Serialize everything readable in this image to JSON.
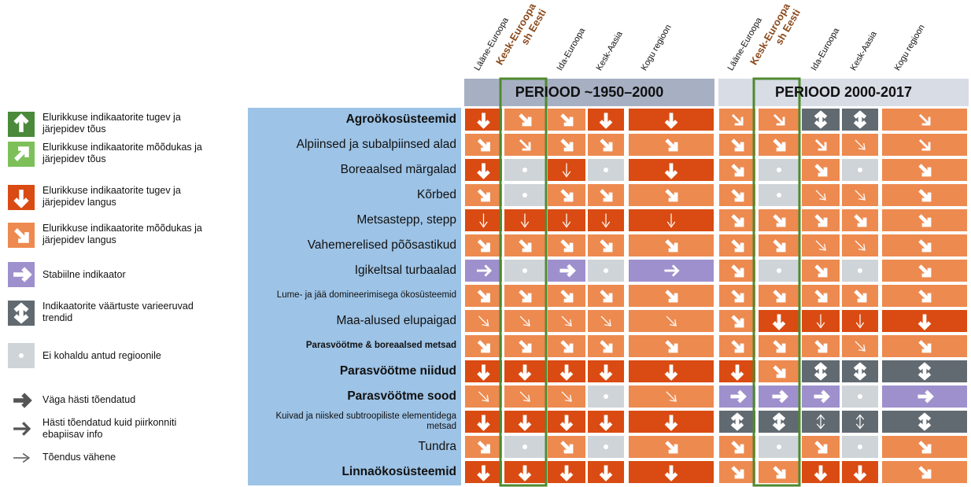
{
  "legend": {
    "trends": [
      {
        "label": "Elurikkuse indikaatorite tugev ja järjepidev tõus",
        "color": "#4a8a3a"
      },
      {
        "label": "Elurikkuse indikaatorite mõõdukas ja järjepidev tõus",
        "color": "#7dc05a"
      },
      {
        "label": "Elurikkuse indikaatorite tugev ja järjepidev langus",
        "color": "#d94b12"
      },
      {
        "label": "Elurikkuse indikaatorite mõõdukas ja järjepidev langus",
        "color": "#ed8a50"
      },
      {
        "label": "Stabiilne indikaator",
        "color": "#9e90cc"
      },
      {
        "label": "Indikaatorite väärtuste varieeruvad trendid",
        "color": "#626a71"
      },
      {
        "label": "Ei kohaldu antud regioonile",
        "color": "#cfd4d8"
      }
    ],
    "confidence": [
      "Väga hästi tõendatud",
      "Hästi tõendatud kuid piirkonniti ebapiisav info",
      "Tõendus vähene"
    ]
  },
  "columns": [
    "Lääne-Euroopa",
    "Kesk-Euroopa sh Eesti",
    "Ida-Euroopa",
    "Kesk-Aasia",
    "Kogu regioon"
  ],
  "periods": [
    {
      "title": "PERIOOD ~1950–2000",
      "color": "#a7b0c3"
    },
    {
      "title": "PERIOOD 2000-2017",
      "color": "#d7dce5"
    }
  ],
  "rows": [
    {
      "label": "Agroökosüsteemid",
      "bold": true,
      "cells": [
        [
          2,
          0
        ],
        [
          3,
          0
        ],
        [
          3,
          0
        ],
        [
          2,
          0
        ],
        [
          2,
          0
        ],
        [
          3,
          1
        ],
        [
          3,
          1
        ],
        [
          5,
          0
        ],
        [
          5,
          0
        ],
        [
          3,
          1
        ]
      ]
    },
    {
      "label": "Alpiinsed ja subalpiinsed alad",
      "cells": [
        [
          3,
          0
        ],
        [
          3,
          1
        ],
        [
          3,
          0
        ],
        [
          3,
          0
        ],
        [
          3,
          0
        ],
        [
          3,
          0
        ],
        [
          3,
          0
        ],
        [
          3,
          1
        ],
        [
          3,
          2
        ],
        [
          3,
          1
        ]
      ]
    },
    {
      "label": "Boreaalsed märgalad",
      "cells": [
        [
          2,
          0
        ],
        [
          6
        ],
        [
          2,
          2
        ],
        [
          6
        ],
        [
          2,
          0
        ],
        [
          3,
          0
        ],
        [
          6
        ],
        [
          3,
          0
        ],
        [
          6
        ],
        [
          3,
          0
        ]
      ]
    },
    {
      "label": "Kõrbed",
      "cells": [
        [
          3,
          0
        ],
        [
          6
        ],
        [
          3,
          0
        ],
        [
          3,
          0
        ],
        [
          3,
          0
        ],
        [
          3,
          0
        ],
        [
          6
        ],
        [
          3,
          2
        ],
        [
          3,
          2
        ],
        [
          3,
          0
        ]
      ]
    },
    {
      "label": "Metsastepp, stepp",
      "cells": [
        [
          2,
          2
        ],
        [
          2,
          2
        ],
        [
          2,
          2
        ],
        [
          2,
          2
        ],
        [
          2,
          2
        ],
        [
          3,
          0
        ],
        [
          3,
          0
        ],
        [
          3,
          0
        ],
        [
          3,
          0
        ],
        [
          3,
          0
        ]
      ]
    },
    {
      "label": "Vahemerelised põõsastikud",
      "cells": [
        [
          3,
          0
        ],
        [
          3,
          0
        ],
        [
          3,
          0
        ],
        [
          3,
          0
        ],
        [
          3,
          0
        ],
        [
          3,
          0
        ],
        [
          3,
          0
        ],
        [
          3,
          2
        ],
        [
          3,
          2
        ],
        [
          3,
          0
        ]
      ]
    },
    {
      "label": "Igikeltsal turbaalad",
      "cells": [
        [
          4,
          1
        ],
        [
          6
        ],
        [
          4,
          0
        ],
        [
          6
        ],
        [
          4,
          1
        ],
        [
          3,
          0
        ],
        [
          6
        ],
        [
          3,
          0
        ],
        [
          6
        ],
        [
          3,
          0
        ]
      ]
    },
    {
      "label": "Lume- ja jää domineerimisega ökosüsteemid",
      "small": true,
      "cells": [
        [
          3,
          0
        ],
        [
          3,
          0
        ],
        [
          3,
          0
        ],
        [
          3,
          0
        ],
        [
          3,
          0
        ],
        [
          3,
          0
        ],
        [
          3,
          0
        ],
        [
          3,
          0
        ],
        [
          3,
          0
        ],
        [
          3,
          0
        ]
      ]
    },
    {
      "label": "Maa-alused elupaigad",
      "cells": [
        [
          3,
          2
        ],
        [
          3,
          2
        ],
        [
          3,
          2
        ],
        [
          3,
          2
        ],
        [
          3,
          2
        ],
        [
          3,
          0
        ],
        [
          2,
          0
        ],
        [
          2,
          2
        ],
        [
          2,
          2
        ],
        [
          2,
          0
        ]
      ]
    },
    {
      "label": "Parasvöötme & boreaalsed metsad",
      "bold": true,
      "small": true,
      "cells": [
        [
          3,
          0
        ],
        [
          3,
          0
        ],
        [
          3,
          0
        ],
        [
          3,
          0
        ],
        [
          3,
          0
        ],
        [
          3,
          0
        ],
        [
          3,
          0
        ],
        [
          3,
          0
        ],
        [
          3,
          2
        ],
        [
          3,
          0
        ]
      ]
    },
    {
      "label": "Parasvöötme niidud",
      "bold": true,
      "cells": [
        [
          2,
          0
        ],
        [
          2,
          0
        ],
        [
          2,
          0
        ],
        [
          2,
          0
        ],
        [
          2,
          0
        ],
        [
          2,
          0
        ],
        [
          3,
          0
        ],
        [
          5,
          0
        ],
        [
          5,
          0
        ],
        [
          5,
          0
        ]
      ]
    },
    {
      "label": "Parasvöötme sood",
      "bold": true,
      "cells": [
        [
          3,
          2
        ],
        [
          3,
          2
        ],
        [
          3,
          2
        ],
        [
          6
        ],
        [
          3,
          2
        ],
        [
          4,
          0
        ],
        [
          4,
          0
        ],
        [
          4,
          0
        ],
        [
          6
        ],
        [
          4,
          0
        ]
      ]
    },
    {
      "label": "Kuivad ja niisked subtroopiliste elementidega metsad",
      "small": true,
      "cells": [
        [
          2,
          0
        ],
        [
          2,
          0
        ],
        [
          2,
          0
        ],
        [
          2,
          0
        ],
        [
          2,
          0
        ],
        [
          5,
          0
        ],
        [
          5,
          0
        ],
        [
          5,
          2
        ],
        [
          5,
          2
        ],
        [
          5,
          0
        ]
      ]
    },
    {
      "label": "Tundra",
      "cells": [
        [
          3,
          0
        ],
        [
          6
        ],
        [
          3,
          0
        ],
        [
          6
        ],
        [
          3,
          0
        ],
        [
          3,
          0
        ],
        [
          6
        ],
        [
          3,
          0
        ],
        [
          6
        ],
        [
          3,
          0
        ]
      ]
    },
    {
      "label": "Linnaökosüsteemid",
      "bold": true,
      "cells": [
        [
          2,
          0
        ],
        [
          2,
          0
        ],
        [
          2,
          0
        ],
        [
          2,
          0
        ],
        [
          2,
          0
        ],
        [
          3,
          0
        ],
        [
          3,
          0
        ],
        [
          2,
          0
        ],
        [
          2,
          0
        ],
        [
          3,
          0
        ]
      ]
    }
  ]
}
